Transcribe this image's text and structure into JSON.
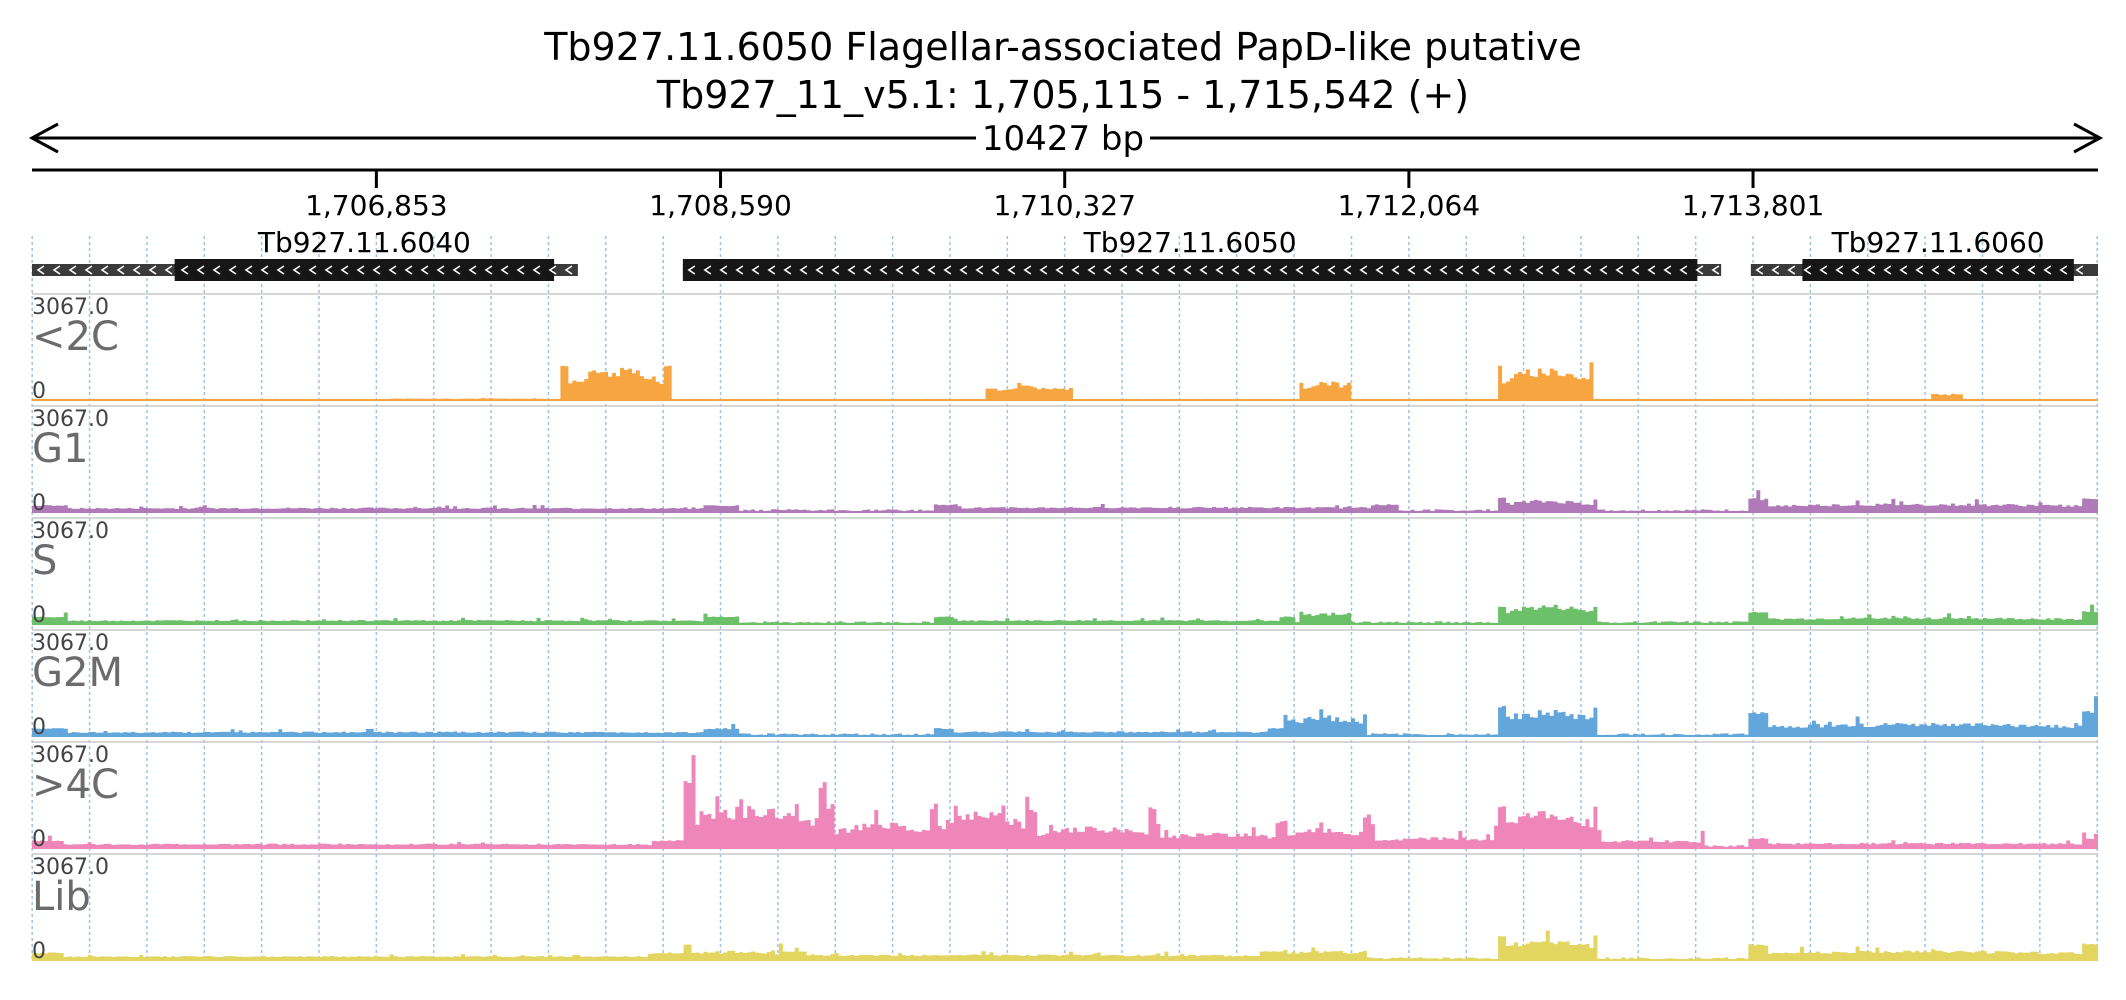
{
  "chart_data": {
    "type": "area",
    "title": "Tb927.11.6050  Flagellar-associated PapD-like  putative",
    "subtitle": "Tb927_11_v5.1: 1,705,115 - 1,715,542 (+)",
    "span_label": "10427 bp",
    "xlim": [
      1705115,
      1715542
    ],
    "ticks": [
      1706853,
      1708590,
      1710327,
      1712064,
      1713801
    ],
    "tick_labels": [
      "1,706,853",
      "1,708,590",
      "1,710,327",
      "1,712,064",
      "1,713,801"
    ],
    "genes": [
      {
        "name": "Tb927.11.6040",
        "strand": "-",
        "utr": [
          1705115,
          1707870
        ],
        "cds": [
          1705835,
          1707750
        ]
      },
      {
        "name": "Tb927.11.6050",
        "strand": "-",
        "utr": [
          1708400,
          1713640
        ],
        "cds": [
          1708400,
          1713520
        ]
      },
      {
        "name": "Tb927.11.6060",
        "strand": "-",
        "utr": [
          1713790,
          1715542
        ],
        "cds": [
          1714050,
          1715420
        ]
      }
    ],
    "y_range": [
      0,
      3067.0
    ],
    "y_max_label": "3067.0",
    "y_min_label": "0",
    "tracks": [
      {
        "name": "<2C",
        "color": "#f7a541",
        "baseline": 30,
        "regions": [
          {
            "start": 1706920,
            "end": 1707720,
            "level": 40
          },
          {
            "start": 1707790,
            "end": 1708340,
            "level": 900,
            "edges": 1130,
            "dip": 0.45
          },
          {
            "start": 1709920,
            "end": 1710370,
            "level": 400,
            "edges": 380,
            "dip": 0.7
          },
          {
            "start": 1711520,
            "end": 1711770,
            "level": 550,
            "edges": 520,
            "dip": 0.6
          },
          {
            "start": 1712520,
            "end": 1713000,
            "level": 900,
            "edges": 1100,
            "dip": 0.6
          },
          {
            "start": 1714700,
            "end": 1714870,
            "level": 180,
            "edges": 180,
            "dip": 0.9
          }
        ]
      },
      {
        "name": "G1",
        "color": "#b07ab8",
        "baseline": 70,
        "regions": [
          {
            "start": 1705115,
            "end": 1708690,
            "level": 120,
            "edges": 200,
            "dip": 0.9
          },
          {
            "start": 1709670,
            "end": 1712020,
            "level": 140,
            "edges": 230,
            "dip": 0.9
          },
          {
            "start": 1712520,
            "end": 1713010,
            "level": 330,
            "edges": 420,
            "dip": 0.7
          },
          {
            "start": 1713780,
            "end": 1715542,
            "level": 230,
            "edges": 400,
            "dip": 0.8
          }
        ]
      },
      {
        "name": "S",
        "color": "#6cc06a",
        "baseline": 70,
        "regions": [
          {
            "start": 1705115,
            "end": 1708690,
            "level": 110,
            "edges": 220,
            "dip": 0.9
          },
          {
            "start": 1709670,
            "end": 1711500,
            "level": 110,
            "edges": 220,
            "dip": 0.9
          },
          {
            "start": 1711520,
            "end": 1711770,
            "level": 330,
            "edges": 380,
            "dip": 0.7
          },
          {
            "start": 1712520,
            "end": 1713010,
            "level": 520,
            "edges": 560,
            "dip": 0.7
          },
          {
            "start": 1713780,
            "end": 1715542,
            "level": 180,
            "edges": 380,
            "dip": 0.8
          }
        ]
      },
      {
        "name": "G2M",
        "color": "#62a6dc",
        "baseline": 70,
        "regions": [
          {
            "start": 1705115,
            "end": 1708690,
            "level": 120,
            "edges": 230,
            "dip": 0.9
          },
          {
            "start": 1709670,
            "end": 1711430,
            "level": 130,
            "edges": 240,
            "dip": 0.9
          },
          {
            "start": 1711430,
            "end": 1711860,
            "level": 560,
            "edges": 700,
            "dip": 0.7
          },
          {
            "start": 1712520,
            "end": 1713010,
            "level": 720,
            "edges": 930,
            "dip": 0.7
          },
          {
            "start": 1713780,
            "end": 1715542,
            "level": 350,
            "edges": 730,
            "dip": 0.8
          }
        ]
      },
      {
        "name": ">4C",
        "color": "#ef86b9",
        "baseline": 80,
        "regions": [
          {
            "start": 1705115,
            "end": 1708410,
            "level": 120,
            "edges": 230,
            "dip": 0.9
          },
          {
            "start": 1708410,
            "end": 1709130,
            "level": 1150,
            "edges": 2000,
            "dip": 0.6,
            "spike": [
              1708450,
              2850
            ]
          },
          {
            "start": 1709130,
            "end": 1709670,
            "level": 700,
            "edges": 1300,
            "dip": 0.6
          },
          {
            "start": 1709670,
            "end": 1710150,
            "level": 1000,
            "edges": 1500,
            "dip": 0.6
          },
          {
            "start": 1710150,
            "end": 1710780,
            "level": 600,
            "edges": 1200,
            "dip": 0.6
          },
          {
            "start": 1710780,
            "end": 1711420,
            "level": 420,
            "edges": 800,
            "dip": 0.7
          },
          {
            "start": 1711420,
            "end": 1711860,
            "level": 560,
            "edges": 900,
            "dip": 0.7
          },
          {
            "start": 1711860,
            "end": 1712520,
            "level": 300,
            "edges": 700,
            "dip": 0.8
          },
          {
            "start": 1712520,
            "end": 1713010,
            "level": 1000,
            "edges": 1300,
            "dip": 0.7
          },
          {
            "start": 1713010,
            "end": 1713560,
            "level": 220,
            "edges": 570,
            "dip": 0.8
          },
          {
            "start": 1713780,
            "end": 1715542,
            "level": 140,
            "edges": 300,
            "dip": 0.9
          }
        ]
      },
      {
        "name": "Lib",
        "color": "#e2d560",
        "baseline": 70,
        "regions": [
          {
            "start": 1705115,
            "end": 1708410,
            "level": 110,
            "edges": 220,
            "dip": 0.9
          },
          {
            "start": 1708410,
            "end": 1708900,
            "level": 250,
            "edges": 500,
            "dip": 0.8
          },
          {
            "start": 1708900,
            "end": 1711430,
            "level": 150,
            "edges": 260,
            "dip": 0.9
          },
          {
            "start": 1711430,
            "end": 1711860,
            "level": 260,
            "edges": 300,
            "dip": 0.8
          },
          {
            "start": 1712520,
            "end": 1713010,
            "level": 560,
            "edges": 730,
            "dip": 0.7
          },
          {
            "start": 1713780,
            "end": 1715542,
            "level": 250,
            "edges": 480,
            "dip": 0.8
          }
        ]
      }
    ]
  }
}
